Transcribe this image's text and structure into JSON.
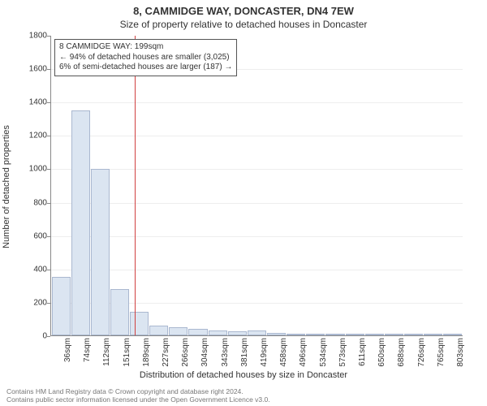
{
  "title": "8, CAMMIDGE WAY, DONCASTER, DN4 7EW",
  "subtitle": "Size of property relative to detached houses in Doncaster",
  "chart": {
    "type": "histogram",
    "ylabel": "Number of detached properties",
    "xlabel": "Distribution of detached houses by size in Doncaster",
    "ylim_max": 1800,
    "ytick_step": 200,
    "categories": [
      "36sqm",
      "74sqm",
      "112sqm",
      "151sqm",
      "189sqm",
      "227sqm",
      "266sqm",
      "304sqm",
      "343sqm",
      "381sqm",
      "419sqm",
      "458sqm",
      "496sqm",
      "534sqm",
      "573sqm",
      "611sqm",
      "650sqm",
      "688sqm",
      "726sqm",
      "765sqm",
      "803sqm"
    ],
    "values": [
      350,
      1350,
      1000,
      280,
      140,
      60,
      50,
      40,
      30,
      25,
      30,
      15,
      5,
      3,
      2,
      2,
      2,
      1,
      1,
      1,
      1
    ],
    "bar_fill": "#dbe5f1",
    "bar_border": "#aab8d0",
    "grid_color": "#eeeeee",
    "axis_color": "#888888",
    "reference_line": {
      "color": "#d04040",
      "index_from": 4,
      "index_to": 5,
      "fraction": 0.26
    },
    "background_color": "#ffffff"
  },
  "annotation": {
    "line1": "8 CAMMIDGE WAY: 199sqm",
    "line2": "← 94% of detached houses are smaller (3,025)",
    "line3": "6% of semi-detached houses are larger (187) →"
  },
  "footer": {
    "line1": "Contains HM Land Registry data © Crown copyright and database right 2024.",
    "line2": "Contains public sector information licensed under the Open Government Licence v3.0."
  }
}
